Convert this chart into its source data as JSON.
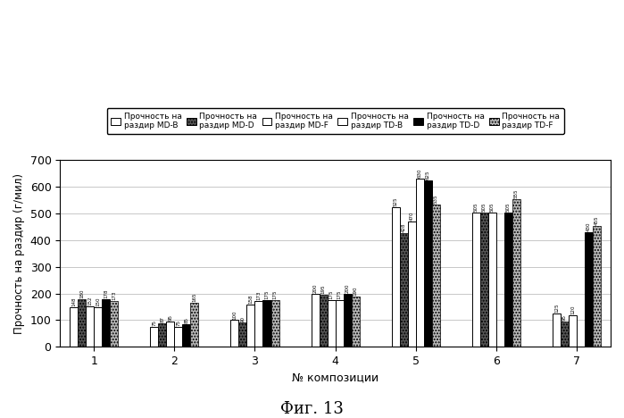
{
  "categories": [
    "1",
    "2",
    "3",
    "4",
    "5",
    "6",
    "7"
  ],
  "series_labels": [
    "Прочность на\nраздир MD-B",
    "Прочность на\nраздир MD-D",
    "Прочность на\nраздир MD-F",
    "Прочность на\nраздир TD-B",
    "Прочность на\nраздир TD-D",
    "Прочность на\nраздир TD-F"
  ],
  "data": [
    [
      148,
      75,
      100,
      200,
      525,
      505,
      125
    ],
    [
      180,
      87,
      90,
      195,
      428,
      505,
      95
    ],
    [
      152,
      95,
      158,
      175,
      470,
      505,
      120
    ],
    [
      150,
      75,
      173,
      175,
      630,
      0,
      0
    ],
    [
      178,
      85,
      175,
      200,
      625,
      505,
      430
    ],
    [
      173,
      165,
      175,
      190,
      535,
      555,
      455
    ]
  ],
  "ylabel": "Прочность на раздир (г/мил)",
  "xlabel": "№ композиции",
  "title": "Фиг. 13",
  "ylim": [
    0,
    700
  ],
  "yticks": [
    0,
    100,
    200,
    300,
    400,
    500,
    600,
    700
  ]
}
